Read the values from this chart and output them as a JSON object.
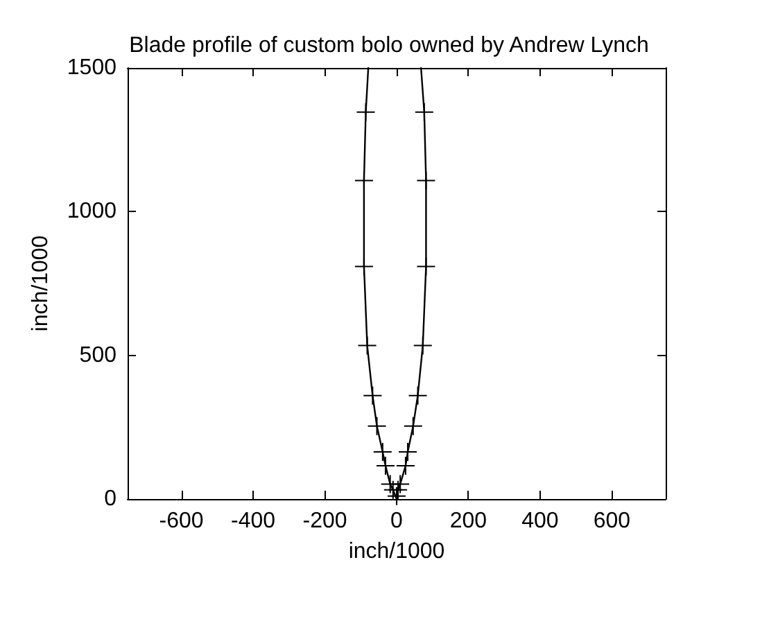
{
  "chart_data": {
    "type": "line",
    "title": "Blade profile of custom bolo owned by Andrew Lynch",
    "xlabel": "inch/1000",
    "ylabel": "inch/1000",
    "xlim": [
      -750,
      750
    ],
    "xticks": [
      -600,
      -400,
      -200,
      0,
      200,
      400,
      600
    ],
    "ylim": [
      0,
      1500
    ],
    "yticks": [
      0,
      500,
      1000,
      1500
    ],
    "series": [
      {
        "marker": "none",
        "color": "#000000",
        "x": [
          -79,
          -86,
          -91,
          -91,
          -82,
          -67,
          -55,
          -39,
          -31,
          -18,
          -10,
          0,
          4,
          10,
          25,
          31,
          46,
          59,
          73,
          82,
          82,
          77,
          68
        ],
        "values": [
          1500,
          1346,
          1108,
          809,
          534,
          360,
          254,
          164,
          116,
          52,
          32,
          0,
          32,
          52,
          116,
          164,
          254,
          360,
          534,
          809,
          1108,
          1346,
          1500
        ]
      },
      {
        "type": "scatter",
        "marker": "cross",
        "color": "#000000",
        "x": [
          -86,
          -91,
          -91,
          -82,
          -67,
          -55,
          -39,
          -31,
          -18,
          -10,
          0,
          4,
          10,
          25,
          31,
          46,
          59,
          73,
          82,
          82,
          77
        ],
        "values": [
          1346,
          1108,
          809,
          534,
          360,
          254,
          164,
          116,
          52,
          32,
          10,
          32,
          52,
          116,
          164,
          254,
          360,
          534,
          809,
          1108,
          1346
        ]
      }
    ]
  }
}
